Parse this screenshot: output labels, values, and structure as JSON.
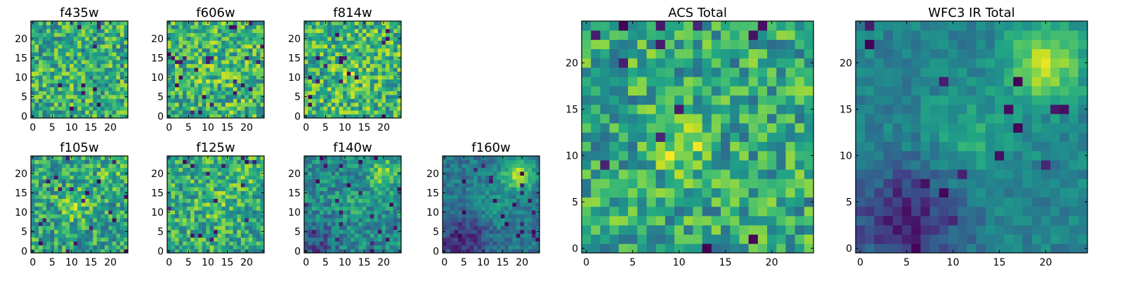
{
  "chart_data": [
    {
      "type": "heatmap",
      "title": "f435w",
      "grid_size": [
        25,
        25
      ],
      "xticks": [
        "0",
        "5",
        "10",
        "15",
        "20"
      ],
      "yticks": [
        "0",
        "5",
        "10",
        "15",
        "20"
      ],
      "colormap": "viridis",
      "seed": 11,
      "noise": 0.55,
      "base": 0.62,
      "blobs": [
        [
          11,
          11,
          2.5,
          0.05
        ]
      ],
      "dark_rate": 0.02
    },
    {
      "type": "heatmap",
      "title": "f606w",
      "grid_size": [
        25,
        25
      ],
      "xticks": [
        "0",
        "5",
        "10",
        "15",
        "20"
      ],
      "yticks": [
        "0",
        "5",
        "10",
        "15",
        "20"
      ],
      "colormap": "viridis",
      "seed": 23,
      "noise": 0.55,
      "base": 0.66,
      "blobs": [
        [
          11,
          12,
          3,
          0.1
        ]
      ],
      "dark_rate": 0.03
    },
    {
      "type": "heatmap",
      "title": "f814w",
      "grid_size": [
        25,
        25
      ],
      "xticks": [
        "0",
        "5",
        "10",
        "15",
        "20"
      ],
      "yticks": [
        "0",
        "5",
        "10",
        "15",
        "20"
      ],
      "colormap": "viridis",
      "seed": 37,
      "noise": 0.55,
      "base": 0.66,
      "blobs": [
        [
          11,
          11,
          3,
          0.12
        ]
      ],
      "dark_rate": 0.03
    },
    {
      "type": "heatmap",
      "title": "f105w",
      "grid_size": [
        25,
        25
      ],
      "xticks": [
        "0",
        "5",
        "10",
        "15",
        "20"
      ],
      "yticks": [
        "0",
        "5",
        "10",
        "15",
        "20"
      ],
      "colormap": "viridis",
      "seed": 41,
      "noise": 0.5,
      "base": 0.58,
      "blobs": [
        [
          11,
          12,
          4,
          0.2
        ],
        [
          20,
          20,
          3,
          0.15
        ]
      ],
      "dark_rate": 0.04
    },
    {
      "type": "heatmap",
      "title": "f125w",
      "grid_size": [
        25,
        25
      ],
      "xticks": [
        "0",
        "5",
        "10",
        "15",
        "20"
      ],
      "yticks": [
        "0",
        "5",
        "10",
        "15",
        "20"
      ],
      "colormap": "viridis",
      "seed": 53,
      "noise": 0.5,
      "base": 0.62,
      "blobs": [
        [
          12,
          12,
          4,
          0.1
        ],
        [
          20,
          20,
          3,
          0.15
        ]
      ],
      "dark_rate": 0.03
    },
    {
      "type": "heatmap",
      "title": "f140w",
      "grid_size": [
        25,
        25
      ],
      "xticks": [
        "0",
        "5",
        "10",
        "15",
        "20"
      ],
      "yticks": [
        "0",
        "5",
        "10",
        "15",
        "20"
      ],
      "colormap": "viridis",
      "seed": 67,
      "noise": 0.35,
      "base": 0.48,
      "blobs": [
        [
          20,
          20,
          4,
          0.35
        ],
        [
          12,
          12,
          4,
          0.1
        ],
        [
          3,
          2,
          5,
          -0.25
        ]
      ],
      "dark_rate": 0.03
    },
    {
      "type": "heatmap",
      "title": "f160w",
      "grid_size": [
        25,
        25
      ],
      "xticks": [
        "0",
        "5",
        "10",
        "15",
        "20"
      ],
      "yticks": [
        "0",
        "5",
        "10",
        "15",
        "20"
      ],
      "colormap": "viridis",
      "seed": 79,
      "noise": 0.25,
      "base": 0.4,
      "blobs": [
        [
          19,
          20,
          4,
          0.5
        ],
        [
          12,
          12,
          5,
          0.12
        ],
        [
          5,
          3,
          6,
          -0.3
        ]
      ],
      "dark_rate": 0.04
    },
    {
      "type": "heatmap",
      "title": "ACS Total",
      "grid_size": [
        25,
        25
      ],
      "xticks": [
        "0",
        "5",
        "10",
        "15",
        "20"
      ],
      "yticks": [
        "0",
        "5",
        "10",
        "15",
        "20"
      ],
      "colormap": "viridis",
      "seed": 97,
      "noise": 0.5,
      "base": 0.6,
      "blobs": [
        [
          10,
          11,
          2.5,
          0.3
        ]
      ],
      "dark_rate": 0.03
    },
    {
      "type": "heatmap",
      "title": "WFC3 IR Total",
      "grid_size": [
        25,
        25
      ],
      "xticks": [
        "0",
        "5",
        "10",
        "15",
        "20"
      ],
      "yticks": [
        "0",
        "5",
        "10",
        "15",
        "20"
      ],
      "colormap": "viridis",
      "seed": 101,
      "noise": 0.2,
      "base": 0.45,
      "blobs": [
        [
          20,
          20,
          4,
          0.45
        ],
        [
          12,
          12,
          5,
          0.15
        ],
        [
          5,
          3,
          6,
          -0.35
        ]
      ],
      "dark_rate": 0.02
    }
  ]
}
